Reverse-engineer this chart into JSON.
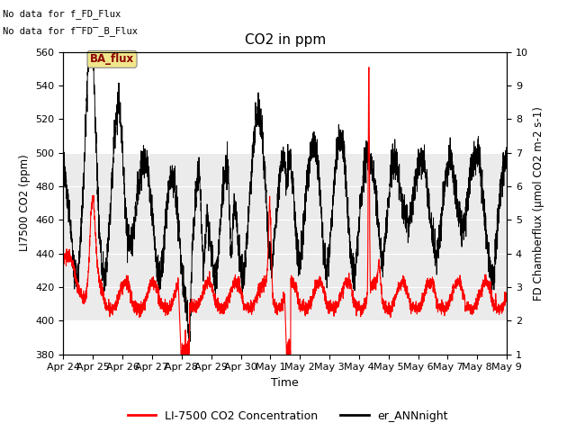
{
  "title": "CO2 in ppm",
  "xlabel": "Time",
  "ylabel_left": "LI7500 CO2 (ppm)",
  "ylabel_right": "FD Chamberflux (μmol CO2 m-2 s-1)",
  "ylim_left": [
    380,
    560
  ],
  "ylim_right": [
    1.0,
    10.0
  ],
  "yticks_left": [
    380,
    400,
    420,
    440,
    460,
    480,
    500,
    520,
    540,
    560
  ],
  "yticks_right": [
    1.0,
    2.0,
    3.0,
    4.0,
    5.0,
    6.0,
    7.0,
    8.0,
    9.0,
    10.0
  ],
  "xtick_labels": [
    "Apr 24",
    "Apr 25",
    "Apr 26",
    "Apr 27",
    "Apr 28",
    "Apr 29",
    "Apr 30",
    "May 1",
    "May 2",
    "May 3",
    "May 4",
    "May 5",
    "May 6",
    "May 7",
    "May 8",
    "May 9"
  ],
  "text_no_data1": "No data for f_FD_Flux",
  "text_no_data2": "No data for f̅FD̅_B_Flux",
  "ba_flux_label": "BA_flux",
  "legend_labels": [
    "LI-7500 CO2 Concentration",
    "er_ANNnight"
  ],
  "legend_colors": [
    "red",
    "black"
  ],
  "bg_gray_ylim": [
    400,
    500
  ],
  "red_color": "#ff0000",
  "black_color": "#000000",
  "gray_bg": "#d3d3d3",
  "ba_flux_bg": "#f0e68c",
  "ba_flux_fg": "#8b0000"
}
